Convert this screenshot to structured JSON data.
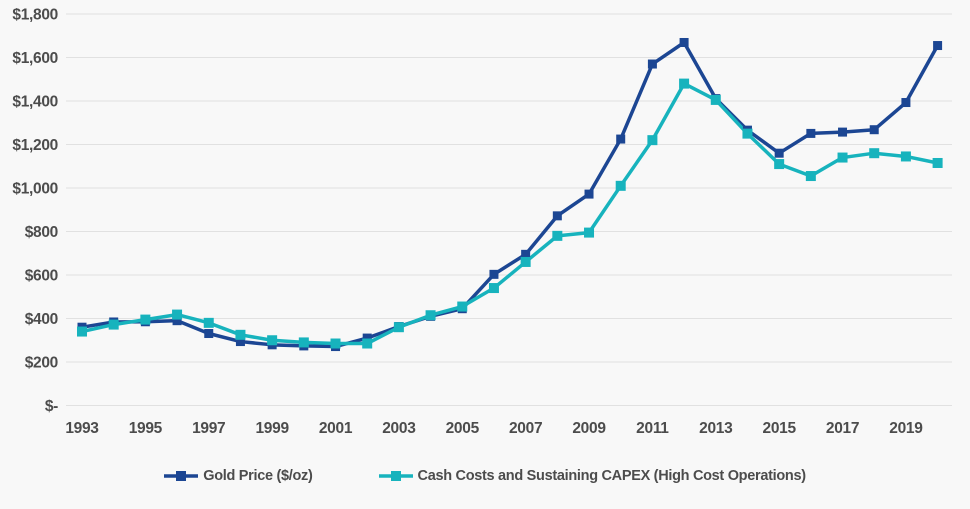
{
  "colors": {
    "gold_series": "#1C4693",
    "costs_series": "#17B3BD",
    "gridline": "#e1e1e1",
    "axis_text": "#4c4c4c",
    "background": "#f8f8f8"
  },
  "chart_data": {
    "type": "line",
    "title": "",
    "xlabel": "",
    "ylabel": "",
    "grid": true,
    "legend_position": "bottom",
    "ylim": [
      0,
      1800
    ],
    "y_tick_interval": 200,
    "y_tick_labels": [
      "$-",
      "$200",
      "$400",
      "$600",
      "$800",
      "$1,000",
      "$1,200",
      "$1,400",
      "$1,600",
      "$1,800"
    ],
    "x": [
      1993,
      1994,
      1995,
      1996,
      1997,
      1998,
      1999,
      2000,
      2001,
      2002,
      2003,
      2004,
      2005,
      2006,
      2007,
      2008,
      2009,
      2010,
      2011,
      2012,
      2013,
      2014,
      2015,
      2016,
      2017,
      2018,
      2019,
      2020
    ],
    "x_tick_labels": [
      "1993",
      "1995",
      "1997",
      "1999",
      "2001",
      "2003",
      "2005",
      "2007",
      "2009",
      "2011",
      "2013",
      "2015",
      "2017",
      "2019"
    ],
    "series": [
      {
        "name": "Gold Price ($/oz)",
        "color": "#1C4693",
        "marker": "square",
        "values": [
          360,
          384,
          385,
          390,
          331,
          294,
          279,
          274,
          271,
          310,
          363,
          410,
          445,
          603,
          695,
          872,
          972,
          1225,
          1570,
          1669,
          1411,
          1266,
          1160,
          1251,
          1257,
          1268,
          1393,
          1655
        ]
      },
      {
        "name": "Cash Costs and Sustaining CAPEX (High Cost Operations)",
        "color": "#17B3BD",
        "marker": "square",
        "values": [
          340,
          372,
          395,
          418,
          380,
          325,
          300,
          290,
          285,
          285,
          360,
          415,
          455,
          540,
          660,
          780,
          795,
          1010,
          1220,
          1480,
          1405,
          1250,
          1110,
          1055,
          1140,
          1160,
          1145,
          1115
        ]
      }
    ]
  },
  "legend": {
    "items": [
      {
        "label": "Gold Price ($/oz)"
      },
      {
        "label": "Cash Costs and Sustaining CAPEX (High Cost Operations)"
      }
    ]
  }
}
